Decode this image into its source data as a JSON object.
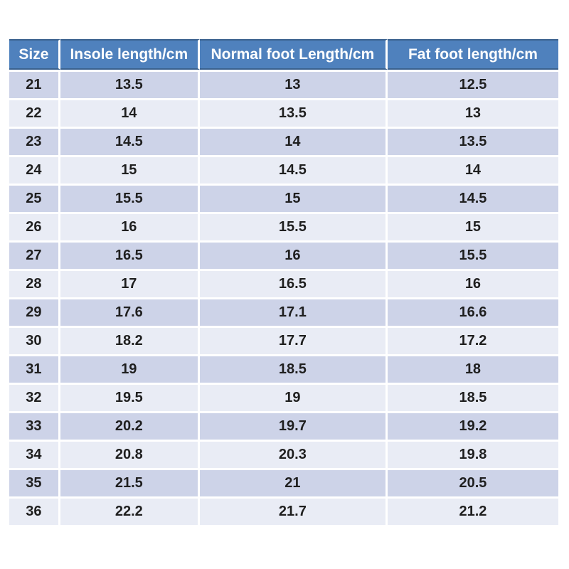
{
  "chart_data": {
    "type": "table",
    "columns": [
      "Size",
      "Insole length/cm",
      "Normal foot Length/cm",
      "Fat foot length/cm"
    ],
    "rows": [
      [
        "21",
        "13.5",
        "13",
        "12.5"
      ],
      [
        "22",
        "14",
        "13.5",
        "13"
      ],
      [
        "23",
        "14.5",
        "14",
        "13.5"
      ],
      [
        "24",
        "15",
        "14.5",
        "14"
      ],
      [
        "25",
        "15.5",
        "15",
        "14.5"
      ],
      [
        "26",
        "16",
        "15.5",
        "15"
      ],
      [
        "27",
        "16.5",
        "16",
        "15.5"
      ],
      [
        "28",
        "17",
        "16.5",
        "16"
      ],
      [
        "29",
        "17.6",
        "17.1",
        "16.6"
      ],
      [
        "30",
        "18.2",
        "17.7",
        "17.2"
      ],
      [
        "31",
        "19",
        "18.5",
        "18"
      ],
      [
        "32",
        "19.5",
        "19",
        "18.5"
      ],
      [
        "33",
        "20.2",
        "19.7",
        "19.2"
      ],
      [
        "34",
        "20.8",
        "20.3",
        "19.8"
      ],
      [
        "35",
        "21.5",
        "21",
        "20.5"
      ],
      [
        "36",
        "22.2",
        "21.7",
        "21.2"
      ]
    ],
    "layout": {
      "banded_rows": true,
      "first_band": "dark",
      "header_position": "top"
    }
  },
  "style": {
    "page_bg": "#ffffff",
    "header_bg": "#4f81bd",
    "header_border": "#3a618e",
    "header_text_color": "#ffffff",
    "row_band_dark": "#cdd3e8",
    "row_band_light": "#e9ecf5",
    "body_text_color": "#1f1f1f",
    "separator_color": "#ffffff"
  }
}
